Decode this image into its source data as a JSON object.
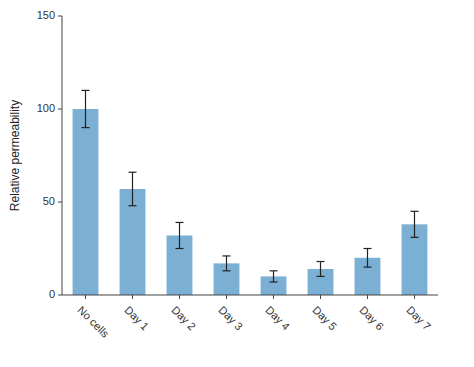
{
  "chart_data": {
    "type": "bar",
    "categories": [
      "No cells",
      "Day 1",
      "Day 2",
      "Day 3",
      "Day 4",
      "Day 5",
      "Day 6",
      "Day 7"
    ],
    "values": [
      100,
      57,
      32,
      17,
      10,
      14,
      20,
      38
    ],
    "errors": [
      10,
      9,
      7,
      4,
      3,
      4,
      5,
      7
    ],
    "color": "#7bafd4",
    "ylabel": "Relative permeability",
    "ylim": [
      0,
      150
    ],
    "yticks": [
      0,
      50,
      100,
      150
    ],
    "grid": false
  }
}
